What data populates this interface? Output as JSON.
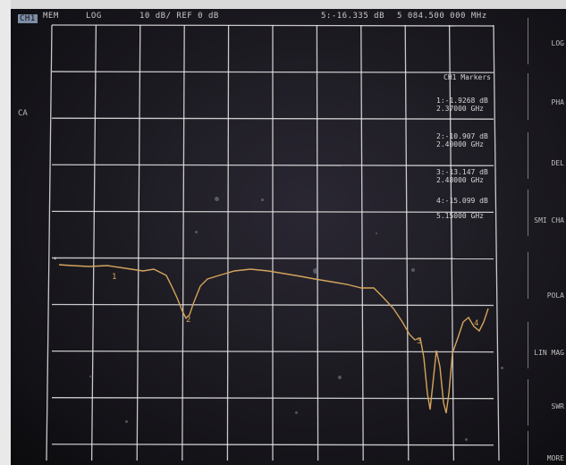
{
  "status": {
    "channel": "CH1",
    "format": "MEM",
    "scale_type": "LOG",
    "scale": "10 dB/ REF 0 dB",
    "marker_readout": "5:-16.335 dB",
    "marker_freq": "5 084.500 000 MHz"
  },
  "trace_label": "CA",
  "marker_panel": {
    "title": "CH1 Markers",
    "items": [
      {
        "value": "1:-1.9268 dB",
        "freq": "2.37000 GHz"
      },
      {
        "value": "2:-10.907 dB",
        "freq": "2.40000 GHz"
      },
      {
        "value": "3:-13.147 dB",
        "freq": "2.48000 GHz"
      },
      {
        "value": "4:-15.099 dB",
        "freq": "5.15000 GHz"
      }
    ]
  },
  "softkeys": [
    "LOG",
    "PHA",
    "DEL",
    "SMI CHA",
    "POLA",
    "LIN MAG",
    "SWR",
    "MORE"
  ],
  "ref_marker": "▸",
  "marker_flags": [
    "1",
    "2",
    "3",
    "4"
  ],
  "trace_color": "#d4a45c",
  "grid_color": "#e8e8e8"
}
